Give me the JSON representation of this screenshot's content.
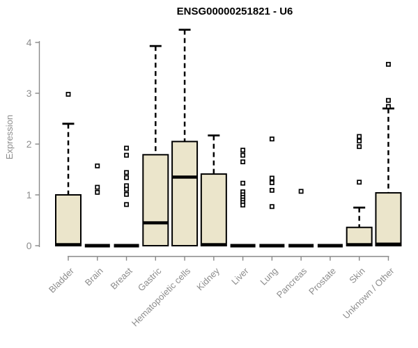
{
  "chart_data": {
    "type": "boxplot",
    "title": "ENSG00000251821 - U6",
    "ylabel": "Expression",
    "xlabel": "",
    "ylim": [
      0,
      4.3
    ],
    "yticks": [
      0,
      1,
      2,
      3,
      4
    ],
    "grid": false,
    "legend": false,
    "categories": [
      "Bladder",
      "Brain",
      "Breast",
      "Gastric",
      "Hematopoietic cells",
      "Kidney",
      "Liver",
      "Lung",
      "Pancreas",
      "Prostate",
      "Skin",
      "Unknown / Other"
    ],
    "boxes": [
      {
        "category": "Bladder",
        "q1": 0,
        "median": 0.02,
        "q3": 1.0,
        "whisker_low": 0,
        "whisker_high": 2.4,
        "outliers": [
          2.98
        ]
      },
      {
        "category": "Brain",
        "q1": 0,
        "median": 0,
        "q3": 0,
        "whisker_low": 0,
        "whisker_high": 0,
        "outliers": [
          1.57,
          1.15,
          1.05
        ]
      },
      {
        "category": "Breast",
        "q1": 0,
        "median": 0,
        "q3": 0,
        "whisker_low": 0,
        "whisker_high": 0,
        "outliers": [
          1.92,
          1.78,
          1.44,
          1.34,
          1.18,
          1.11,
          1.01,
          0.81
        ]
      },
      {
        "category": "Gastric",
        "q1": 0,
        "median": 0.45,
        "q3": 1.79,
        "whisker_low": 0,
        "whisker_high": 3.93,
        "outliers": []
      },
      {
        "category": "Hematopoietic cells",
        "q1": 0,
        "median": 1.35,
        "q3": 2.05,
        "whisker_low": 0,
        "whisker_high": 4.25,
        "outliers": []
      },
      {
        "category": "Kidney",
        "q1": 0,
        "median": 0.02,
        "q3": 1.41,
        "whisker_low": 0,
        "whisker_high": 2.17,
        "outliers": []
      },
      {
        "category": "Liver",
        "q1": 0,
        "median": 0,
        "q3": 0,
        "whisker_low": 0,
        "whisker_high": 0,
        "outliers": [
          1.88,
          1.78,
          1.65,
          1.23,
          1.06,
          1.0,
          0.95,
          0.9,
          0.85,
          0.8
        ]
      },
      {
        "category": "Lung",
        "q1": 0,
        "median": 0,
        "q3": 0,
        "whisker_low": 0,
        "whisker_high": 0,
        "outliers": [
          2.1,
          1.33,
          1.24,
          1.09,
          0.77
        ]
      },
      {
        "category": "Pancreas",
        "q1": 0,
        "median": 0,
        "q3": 0,
        "whisker_low": 0,
        "whisker_high": 0,
        "outliers": [
          1.07
        ]
      },
      {
        "category": "Prostate",
        "q1": 0,
        "median": 0,
        "q3": 0,
        "whisker_low": 0,
        "whisker_high": 0,
        "outliers": []
      },
      {
        "category": "Skin",
        "q1": 0,
        "median": 0.02,
        "q3": 0.36,
        "whisker_low": 0,
        "whisker_high": 0.75,
        "outliers": [
          2.15,
          2.06,
          1.95,
          1.25
        ]
      },
      {
        "category": "Unknown / Other",
        "q1": 0,
        "median": 0.03,
        "q3": 1.04,
        "whisker_low": 0,
        "whisker_high": 2.7,
        "outliers": [
          3.57,
          2.86,
          2.74
        ]
      }
    ],
    "colors": {
      "box_fill": "#EBE5CB",
      "box_stroke": "#000000",
      "median": "#000000",
      "whisker": "#000000",
      "outlier_stroke": "#000000",
      "outlier_fill": "#FFFFFF",
      "axis_line": "#888888",
      "axis_text": "#8C8C8C",
      "title_text": "#000000",
      "background": "#FFFFFF"
    }
  }
}
